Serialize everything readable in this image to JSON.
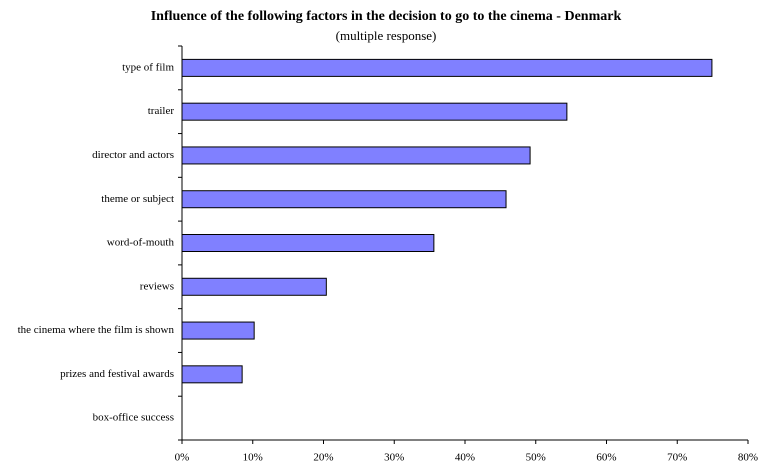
{
  "chart_data": {
    "type": "bar",
    "orientation": "horizontal",
    "title": "Influence of the following factors in the decision to go to the cinema - Denmark",
    "subtitle": "(multiple response)",
    "categories": [
      "type of film",
      "trailer",
      "director and actors",
      "theme or subject",
      "word-of-mouth",
      "reviews",
      "the cinema where the film is shown",
      "prizes and festival awards",
      "box-office success"
    ],
    "values": [
      74.9,
      54.4,
      49.2,
      45.8,
      35.6,
      20.4,
      10.2,
      8.5,
      0
    ],
    "color": "#8080ff",
    "xlim": [
      0,
      80
    ],
    "xticks": [
      {
        "value": 0,
        "label": "0%"
      },
      {
        "value": 10,
        "label": "10%"
      },
      {
        "value": 20,
        "label": "20%"
      },
      {
        "value": 30,
        "label": "30%"
      },
      {
        "value": 40,
        "label": "40%"
      },
      {
        "value": 50,
        "label": "50%"
      },
      {
        "value": 60,
        "label": "60%"
      },
      {
        "value": 70,
        "label": "70%"
      },
      {
        "value": 80,
        "label": "80%"
      }
    ],
    "grid": false
  }
}
